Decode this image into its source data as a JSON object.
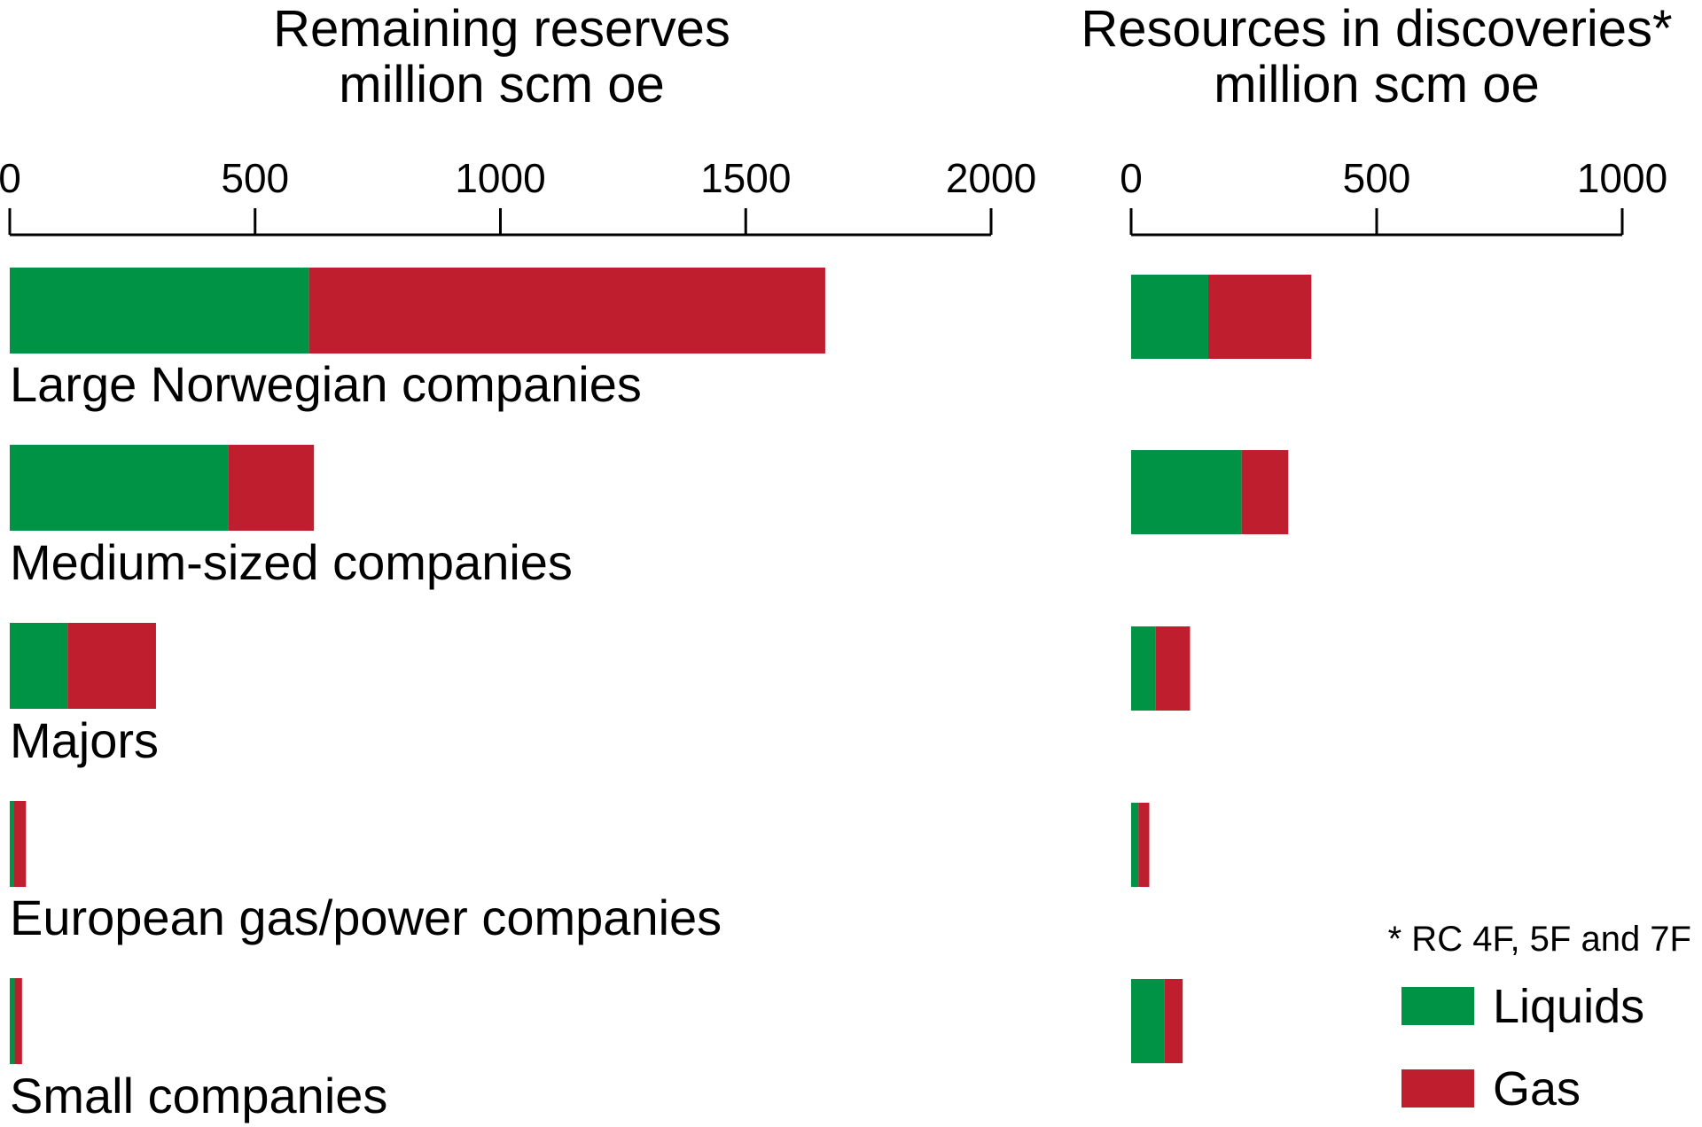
{
  "chart_data": [
    {
      "type": "bar",
      "orientation": "horizontal",
      "stacked": true,
      "title": "Remaining reserves",
      "subtitle": "million scm oe",
      "xlim": [
        0,
        2000
      ],
      "ticks": [
        "0",
        "500",
        "1000",
        "1500",
        "2000"
      ],
      "tick_values": [
        0,
        500,
        1000,
        1500,
        2000
      ],
      "categories": [
        "Large Norwegian companies",
        "Medium-sized companies",
        "Majors",
        "European gas/power companies",
        "Small companies"
      ],
      "series": [
        {
          "name": "Liquids",
          "values": [
            610,
            445,
            118,
            8,
            10
          ]
        },
        {
          "name": "Gas",
          "values": [
            1052,
            175,
            180,
            25,
            15
          ]
        }
      ]
    },
    {
      "type": "bar",
      "orientation": "horizontal",
      "stacked": true,
      "title": "Resources in discoveries*",
      "subtitle": "million scm oe",
      "xlim": [
        0,
        1000
      ],
      "ticks": [
        "0",
        "500",
        "1000"
      ],
      "tick_values": [
        0,
        500,
        1000
      ],
      "categories": [
        "Large Norwegian companies",
        "Medium-sized companies",
        "Majors",
        "European gas/power companies",
        "Small companies"
      ],
      "series": [
        {
          "name": "Liquids",
          "values": [
            157,
            225,
            50,
            15,
            68
          ]
        },
        {
          "name": "Gas",
          "values": [
            210,
            95,
            70,
            22,
            37
          ]
        }
      ]
    }
  ],
  "legend": {
    "items": [
      {
        "label": "Liquids",
        "color": "#009245"
      },
      {
        "label": "Gas",
        "color": "#be1e2d"
      }
    ]
  },
  "colors": {
    "liquids": "#009245",
    "gas": "#be1e2d"
  },
  "footnote": "* RC 4F, 5F and 7F"
}
